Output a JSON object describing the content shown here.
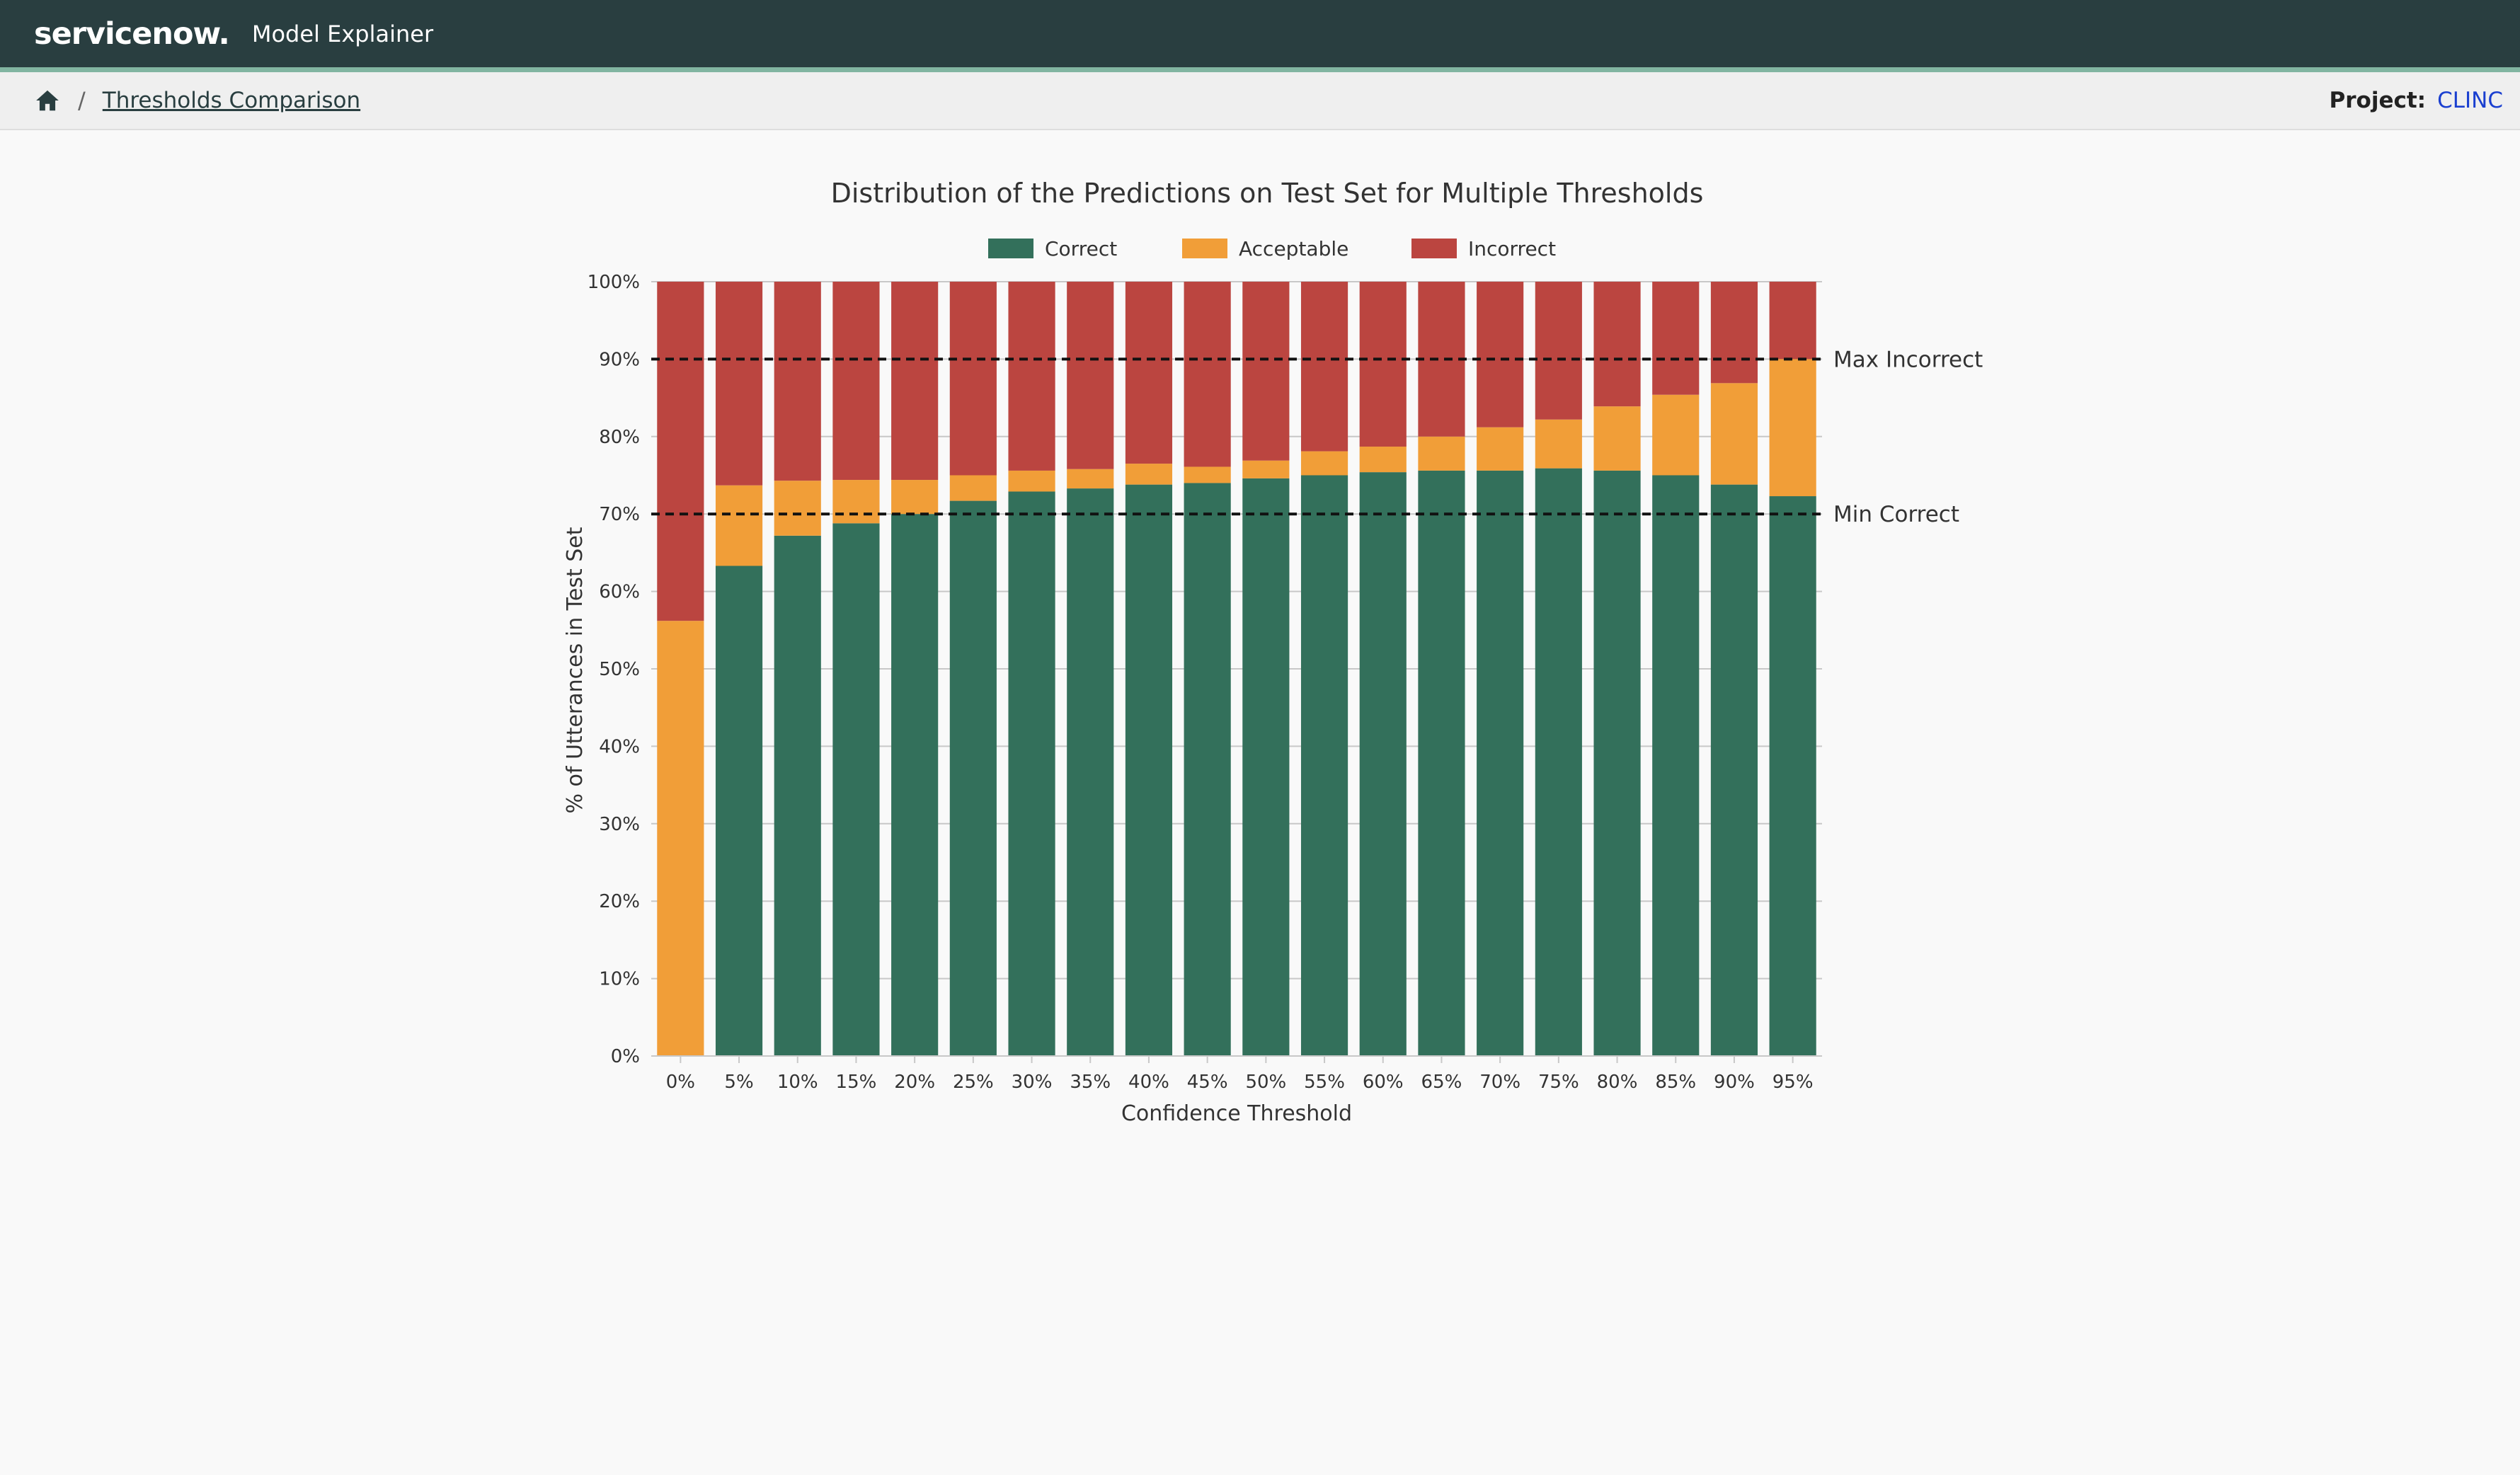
{
  "header": {
    "brand": "servicenow.",
    "app_name": "Model Explainer"
  },
  "breadcrumb": {
    "separator": "/",
    "current": "Thresholds Comparison"
  },
  "project": {
    "label": "Project:",
    "value": "CLINC"
  },
  "colors": {
    "correct": "#33705b",
    "acceptable": "#f19e38",
    "incorrect": "#bb4540",
    "header_bg": "#293e40",
    "link": "#1a3fd0"
  },
  "chart_data": {
    "type": "bar",
    "stacked": true,
    "title": "Distribution of the Predictions on Test Set for Multiple Thresholds",
    "xlabel": "Confidence Threshold",
    "ylabel": "% of Utterances in Test Set",
    "ylim": [
      0,
      100
    ],
    "yticks": [
      "0%",
      "10%",
      "20%",
      "30%",
      "40%",
      "50%",
      "60%",
      "70%",
      "80%",
      "90%",
      "100%"
    ],
    "legend_position": "top-center",
    "grid": true,
    "categories": [
      "0%",
      "5%",
      "10%",
      "15%",
      "20%",
      "25%",
      "30%",
      "35%",
      "40%",
      "45%",
      "50%",
      "55%",
      "60%",
      "65%",
      "70%",
      "75%",
      "80%",
      "85%",
      "90%",
      "95%"
    ],
    "series": [
      {
        "name": "Correct",
        "color": "#33705b",
        "values": [
          0,
          63.3,
          67.2,
          68.8,
          70.0,
          71.7,
          72.9,
          73.3,
          73.8,
          74.0,
          74.6,
          75.0,
          75.4,
          75.6,
          75.6,
          75.9,
          75.6,
          75.0,
          73.8,
          72.3
        ]
      },
      {
        "name": "Acceptable",
        "color": "#f19e38",
        "values": [
          56.2,
          10.4,
          7.1,
          5.6,
          4.4,
          3.3,
          2.7,
          2.5,
          2.7,
          2.1,
          2.3,
          3.1,
          3.3,
          4.4,
          5.6,
          6.3,
          8.3,
          10.4,
          13.1,
          17.7
        ]
      },
      {
        "name": "Incorrect",
        "color": "#bb4540",
        "values": [
          43.8,
          26.3,
          25.7,
          25.6,
          25.6,
          25.0,
          24.4,
          24.2,
          23.5,
          23.9,
          23.1,
          21.9,
          21.3,
          20.0,
          18.8,
          17.8,
          16.1,
          14.6,
          13.1,
          10.0
        ]
      }
    ],
    "reference_lines": [
      {
        "label": "Max Incorrect",
        "y": 90
      },
      {
        "label": "Min Correct",
        "y": 70
      }
    ]
  }
}
